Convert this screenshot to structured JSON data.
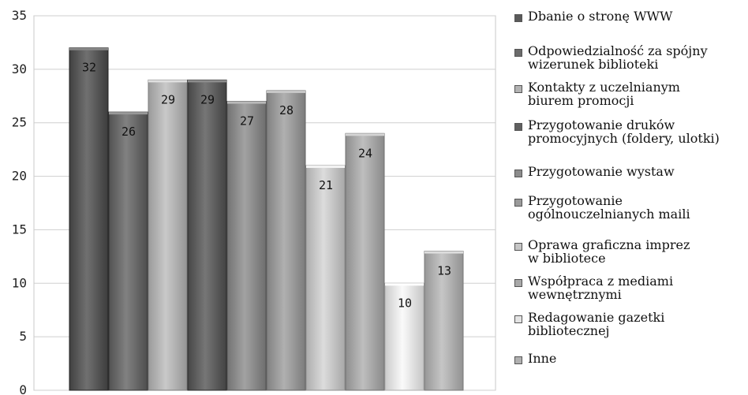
{
  "chart_data": {
    "type": "bar",
    "ylim": [
      0,
      35
    ],
    "yticks": [
      "0",
      "5",
      "10",
      "15",
      "20",
      "25",
      "30",
      "35"
    ],
    "grid": true,
    "legend_placement": "right",
    "categories": [
      "Dbanie o stronę WWW",
      "Odpowiedzialność za spójny\nwizerunek biblioteki",
      "Kontakty z uczelnianym\nbiurem promocji",
      "Przygotowanie druków\npromocyjnych (foldery, ulotki)",
      "Przygotowanie wystaw",
      "Przygotowanie\nogólnouczelnianych maili",
      "Oprawa graficzna imprez\nw bibliotece",
      "Współpraca z mediami\nwewnętrznymi",
      "Redagowanie gazetki\nbibliotecznej",
      "Inne"
    ],
    "values": [
      32,
      26,
      29,
      29,
      27,
      28,
      21,
      24,
      10,
      13
    ],
    "data_labels": [
      "32",
      "26",
      "29",
      "29",
      "27",
      "28",
      "21",
      "24",
      "10",
      "13"
    ],
    "colors": [
      "#5a5a5a",
      "#6b6b6b",
      "#b3b3b3",
      "#606060",
      "#8c8c8c",
      "#9a9a9a",
      "#c6c6c6",
      "#a8a8a8",
      "#e4e4e4",
      "#b0b0b0"
    ]
  }
}
